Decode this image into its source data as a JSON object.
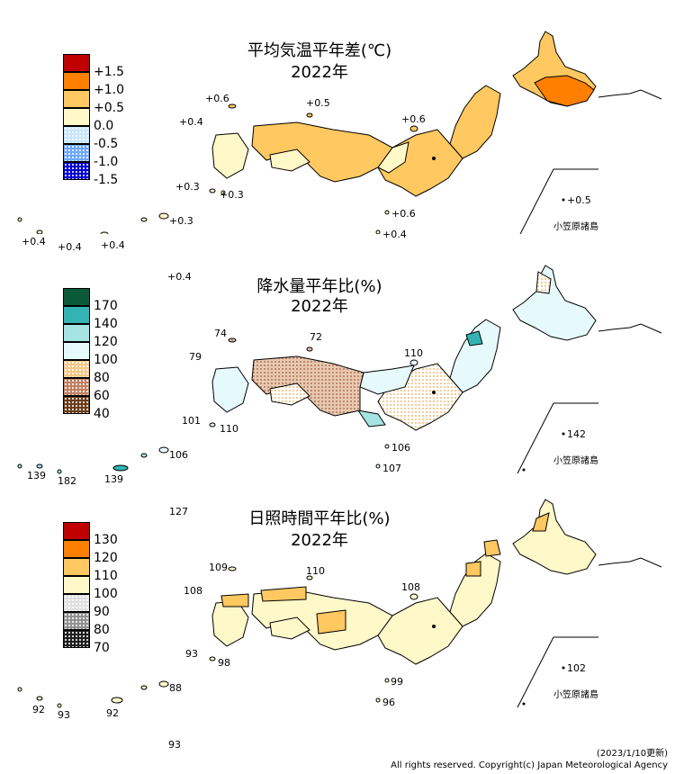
{
  "panels": [
    {
      "id": "temp",
      "title": "平均気温平年差(℃)",
      "year": "2022年",
      "legend": [
        {
          "label": "+1.5",
          "color": "#c00000",
          "pattern": "solid"
        },
        {
          "label": "+1.0",
          "color": "#ff8000",
          "pattern": "solid"
        },
        {
          "label": "+0.5",
          "color": "#ffc860",
          "pattern": "solid"
        },
        {
          "label": "0.0",
          "color": "#fff8c8",
          "pattern": "solid"
        },
        {
          "label": "-0.5",
          "color": "#c8e6ff",
          "pattern": "dots"
        },
        {
          "label": "-1.0",
          "color": "#6fa8ff",
          "pattern": "dots"
        },
        {
          "label": "-1.5",
          "color": "#0000d0",
          "pattern": "dots"
        }
      ],
      "values": [
        {
          "id": "v1",
          "text": "+0.6"
        },
        {
          "id": "v2",
          "text": "+0.5"
        },
        {
          "id": "v3",
          "text": "+0.4"
        },
        {
          "id": "v4",
          "text": "+0.6"
        },
        {
          "id": "v5",
          "text": "+0.3"
        },
        {
          "id": "v6",
          "text": "+0.3"
        },
        {
          "id": "v7",
          "text": "+0.3"
        },
        {
          "id": "v8",
          "text": "+0.6"
        },
        {
          "id": "v9",
          "text": "+0.4"
        },
        {
          "id": "v10",
          "text": "+0.4"
        },
        {
          "id": "v11",
          "text": "+0.4"
        },
        {
          "id": "v12",
          "text": "+0.4"
        },
        {
          "id": "v13",
          "text": "+0.4"
        },
        {
          "id": "v14",
          "text": "+0.5"
        }
      ],
      "ogasawara": "小笠原諸島"
    },
    {
      "id": "precip",
      "title": "降水量平年比(%)",
      "year": "2022年",
      "legend": [
        {
          "label": "170",
          "color": "#0a5a3a",
          "pattern": "solid"
        },
        {
          "label": "140",
          "color": "#33b3b3",
          "pattern": "solid"
        },
        {
          "label": "120",
          "color": "#a6e3e3",
          "pattern": "solid"
        },
        {
          "label": "100",
          "color": "#e6f9fb",
          "pattern": "solid"
        },
        {
          "label": "80",
          "color": "#f5c88a",
          "pattern": "dots"
        },
        {
          "label": "60",
          "color": "#c08060",
          "pattern": "dots"
        },
        {
          "label": "40",
          "color": "#6b3d1a",
          "pattern": "dots"
        }
      ],
      "values": [
        {
          "id": "v1",
          "text": "74"
        },
        {
          "id": "v2",
          "text": "72"
        },
        {
          "id": "v3",
          "text": "79"
        },
        {
          "id": "v4",
          "text": "110"
        },
        {
          "id": "v5",
          "text": "101"
        },
        {
          "id": "v6",
          "text": "110"
        },
        {
          "id": "v7",
          "text": "106"
        },
        {
          "id": "v8",
          "text": "106"
        },
        {
          "id": "v9",
          "text": "107"
        },
        {
          "id": "v10",
          "text": "139"
        },
        {
          "id": "v11",
          "text": "182"
        },
        {
          "id": "v12",
          "text": "139"
        },
        {
          "id": "v13",
          "text": "127"
        },
        {
          "id": "v14",
          "text": "142"
        }
      ],
      "ogasawara": "小笠原諸島"
    },
    {
      "id": "sunshine",
      "title": "日照時間平年比(%)",
      "year": "2022年",
      "legend": [
        {
          "label": "130",
          "color": "#c00000",
          "pattern": "solid"
        },
        {
          "label": "120",
          "color": "#ff8000",
          "pattern": "solid"
        },
        {
          "label": "110",
          "color": "#ffc860",
          "pattern": "solid"
        },
        {
          "label": "100",
          "color": "#fff8c8",
          "pattern": "solid"
        },
        {
          "label": "90",
          "color": "#e0e0e0",
          "pattern": "dots"
        },
        {
          "label": "80",
          "color": "#909090",
          "pattern": "dots"
        },
        {
          "label": "70",
          "color": "#202020",
          "pattern": "dots"
        }
      ],
      "values": [
        {
          "id": "v1",
          "text": "109"
        },
        {
          "id": "v2",
          "text": "110"
        },
        {
          "id": "v3",
          "text": "108"
        },
        {
          "id": "v4",
          "text": "108"
        },
        {
          "id": "v5",
          "text": "93"
        },
        {
          "id": "v6",
          "text": "98"
        },
        {
          "id": "v7",
          "text": "99"
        },
        {
          "id": "v8",
          "text": "96"
        },
        {
          "id": "v9",
          "text": "92"
        },
        {
          "id": "v10",
          "text": "93"
        },
        {
          "id": "v11",
          "text": "92"
        },
        {
          "id": "v12",
          "text": "88"
        },
        {
          "id": "v13",
          "text": "93"
        },
        {
          "id": "v14",
          "text": "102"
        }
      ],
      "ogasawara": "小笠原諸島"
    }
  ],
  "footer": {
    "updated": "(2023/1/10更新)",
    "copyright": "All rights reserved. Copyright(c) Japan Meteorological Agency"
  }
}
